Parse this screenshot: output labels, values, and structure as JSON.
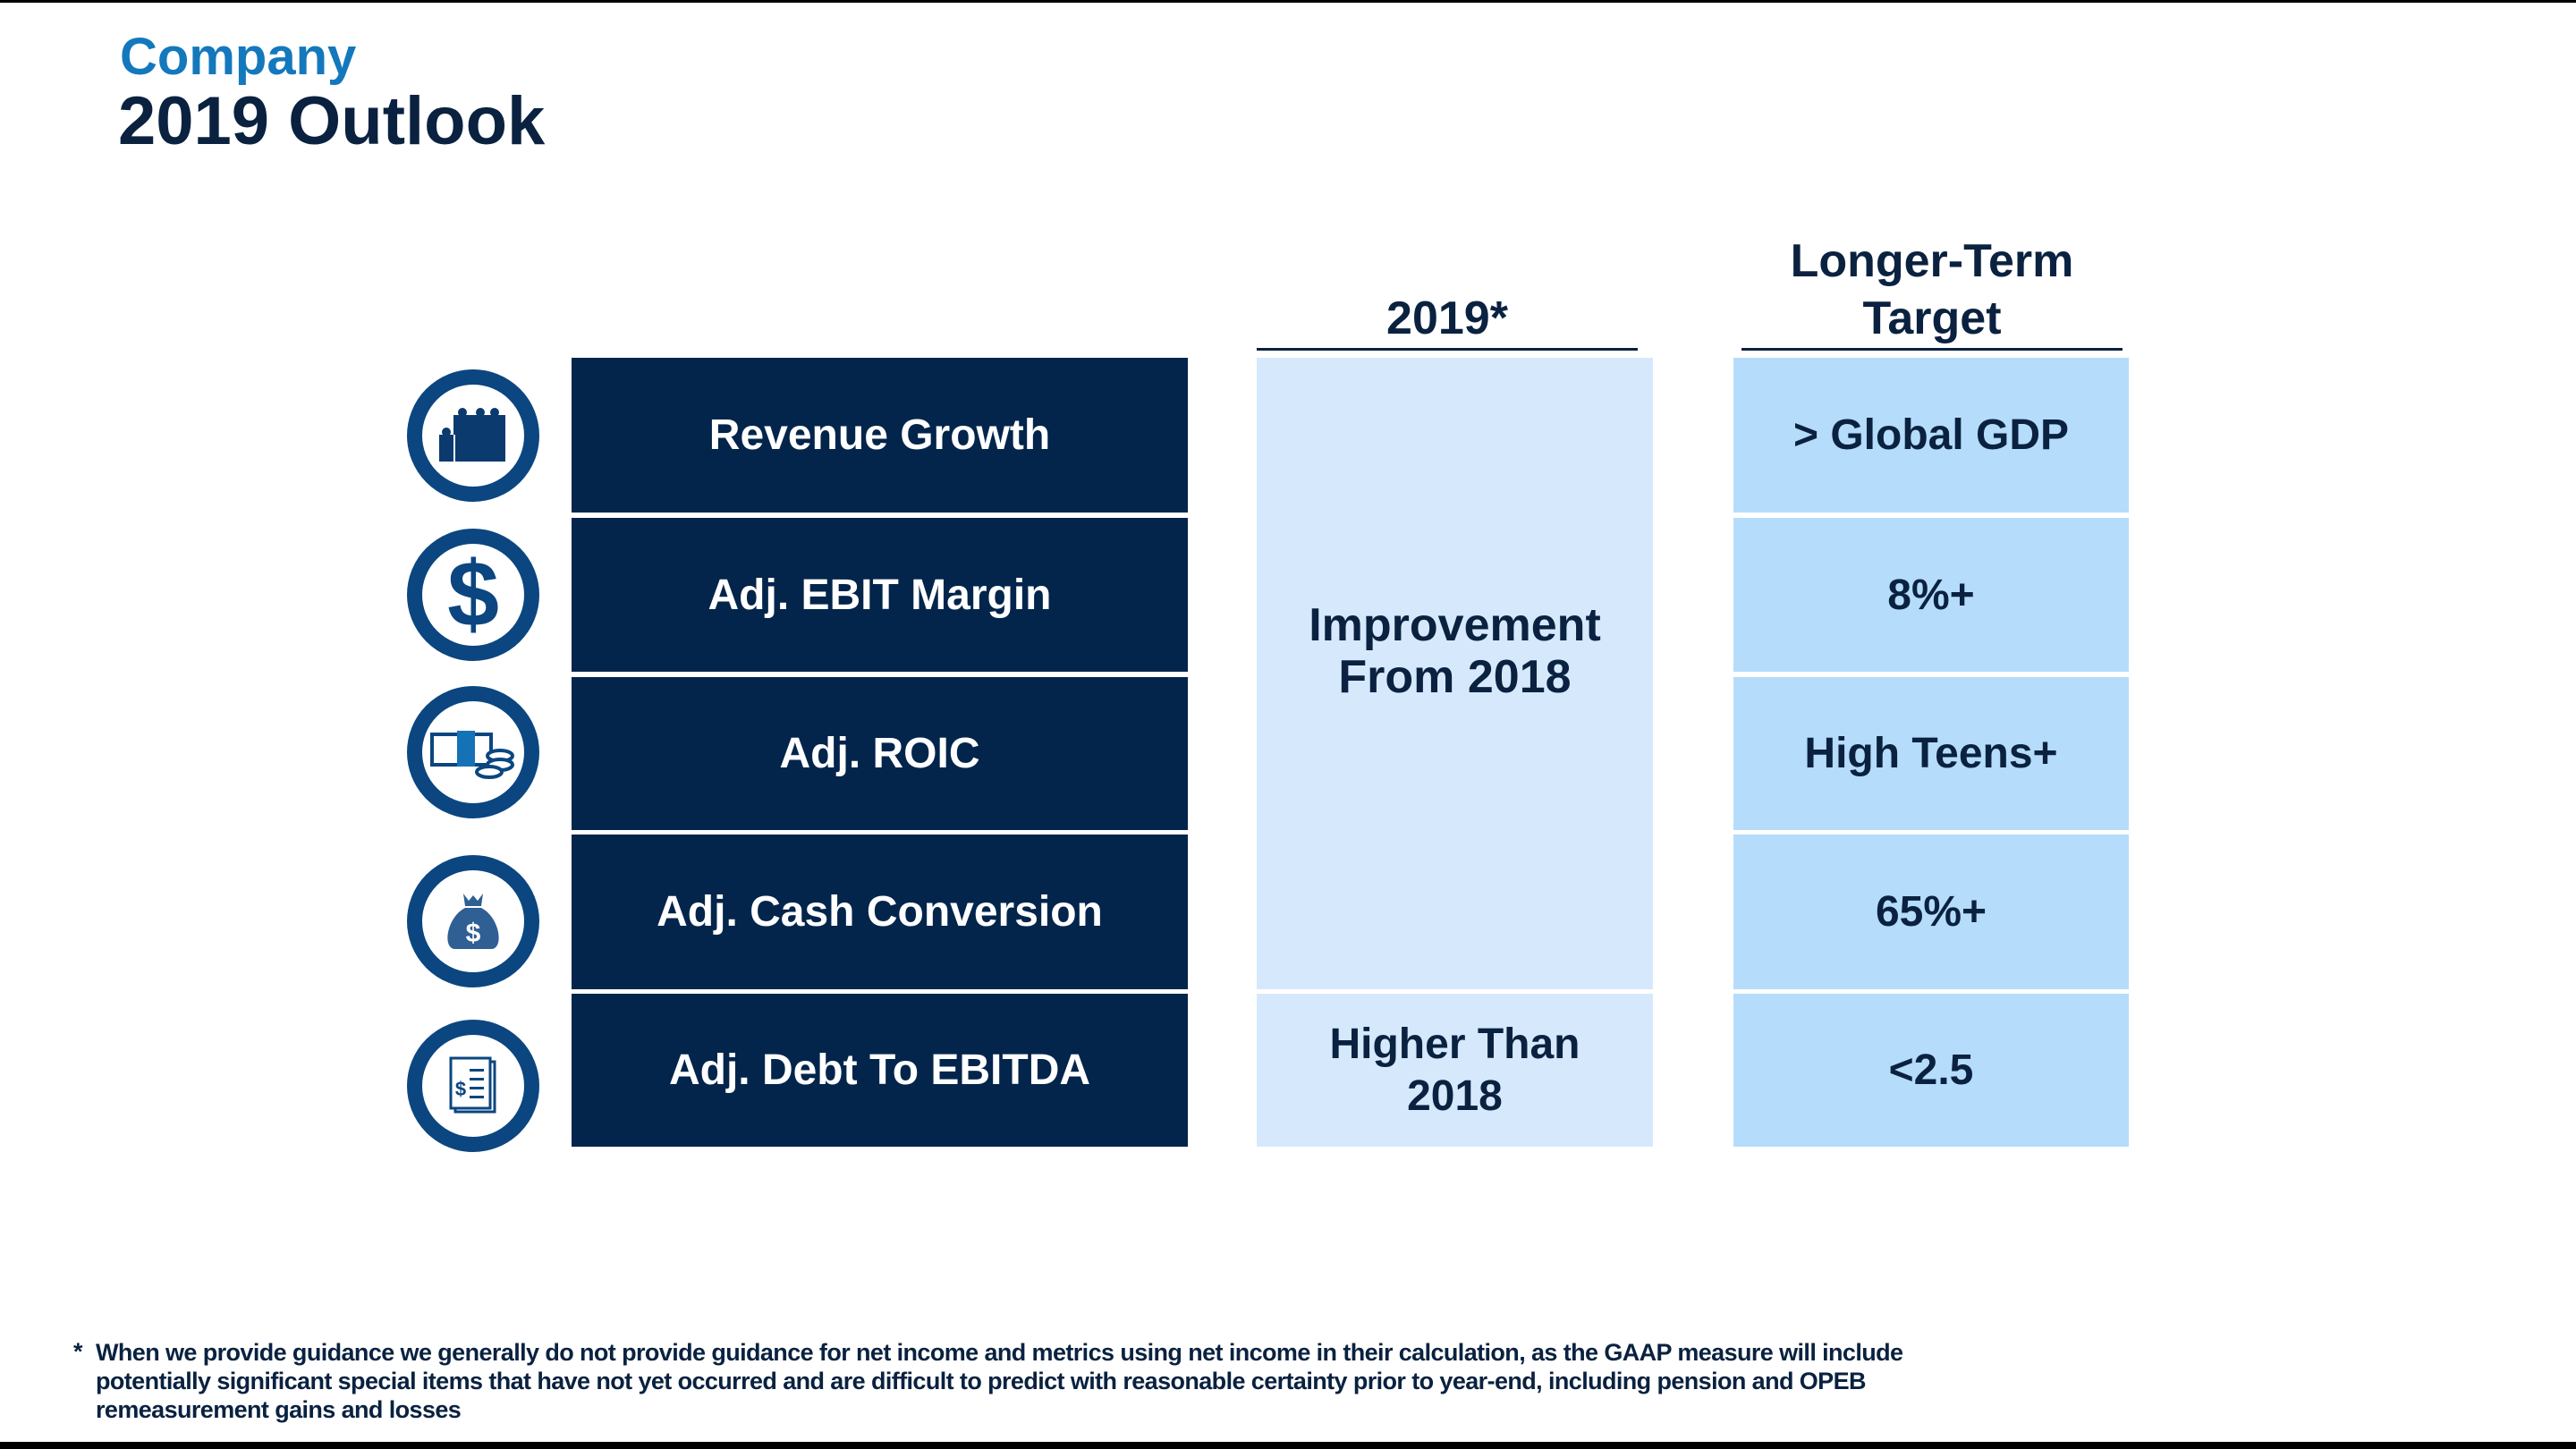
{
  "header": {
    "supertitle": "Company",
    "title": "2019 Outlook"
  },
  "columns": {
    "col_2019": "2019*",
    "col_target_line1": "Longer-Term",
    "col_target_line2": "Target"
  },
  "metrics": [
    {
      "label": "Revenue Growth",
      "icon": "lego-bricks-icon",
      "target": "> Global GDP"
    },
    {
      "label": "Adj. EBIT Margin",
      "icon": "dollar-sign-icon",
      "target": "8%+"
    },
    {
      "label": "Adj. ROIC",
      "icon": "cash-and-coins-icon",
      "target": "High Teens+"
    },
    {
      "label": "Adj. Cash Conversion",
      "icon": "money-bag-icon",
      "target": "65%+"
    },
    {
      "label": "Adj. Debt To EBITDA",
      "icon": "invoice-document-icon",
      "target": "<2.5"
    }
  ],
  "outlook_2019": {
    "first_four_line1": "Improvement",
    "first_four_line2": "From 2018",
    "last_line1": "Higher Than",
    "last_line2": "2018"
  },
  "footnote": {
    "marker": "*",
    "text": "When we provide guidance we generally do not provide guidance for net income and metrics using net income in their calculation, as the GAAP measure will include potentially significant special items that have not yet occurred and are difficult to predict with reasonable certainty prior to year-end, including pension and OPEB remeasurement gains and losses"
  },
  "colors": {
    "navy": "#03254c",
    "title_blue": "#1478bc",
    "light_blue": "#d6e9fc",
    "target_blue": "#b5dcfb",
    "icon_ring": "#0b4680"
  }
}
